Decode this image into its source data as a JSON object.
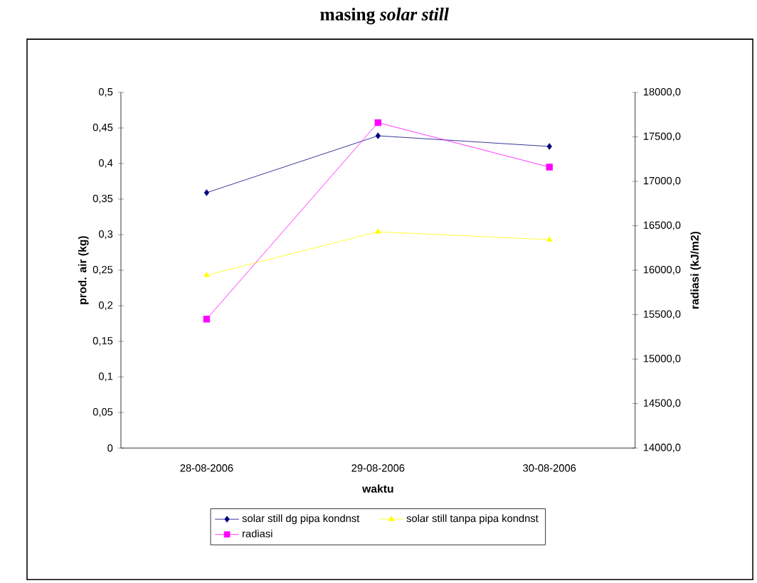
{
  "chart_data": {
    "type": "line",
    "title": "masing *solar still*",
    "xlabel": "waktu",
    "ylabel": "prod. air (kg)",
    "y2label": "radiasi (kJ/m2)",
    "categories": [
      "28-08-2006",
      "29-08-2006",
      "30-08-2006"
    ],
    "series": [
      {
        "name": "solar still dg pipa kondnst",
        "color": "#000080",
        "marker": "diamond",
        "values": [
          0.359,
          0.439,
          0.424
        ]
      },
      {
        "name": "solar still tanpa pipa kondnst",
        "color": "#ffff00",
        "marker": "triangle",
        "values": [
          0.243,
          0.304,
          0.293
        ]
      },
      {
        "name": "radiasi",
        "color": "#ff00ff",
        "marker": "square",
        "axis": "y2",
        "values": [
          15450,
          17660,
          17160
        ]
      }
    ],
    "ylim": [
      0,
      0.5
    ],
    "yticks": [
      0,
      {
        "value": 0.05,
        "label": "0,05"
      },
      {
        "value": 0.1,
        "label": "0,1"
      },
      {
        "value": 0.15,
        "label": "0,15"
      },
      {
        "value": 0.2,
        "label": "0,2"
      },
      {
        "value": 0.25,
        "label": "0,25"
      },
      {
        "value": 0.3,
        "label": "0,3"
      },
      {
        "value": 0.35,
        "label": "0,35"
      },
      {
        "value": 0.4,
        "label": "0,4"
      },
      {
        "value": 0.45,
        "label": "0,45"
      },
      {
        "value": 0.5,
        "label": "0,5"
      }
    ],
    "y2lim": [
      14000,
      18000
    ],
    "y2ticks": [
      {
        "value": 14000,
        "label": "14000,0"
      },
      {
        "value": 14500,
        "label": "14500,0"
      },
      {
        "value": 15000,
        "label": "15000,0"
      },
      {
        "value": 15500,
        "label": "15500,0"
      },
      {
        "value": 16000,
        "label": "16000,0"
      },
      {
        "value": 16500,
        "label": "16500,0"
      },
      {
        "value": 17000,
        "label": "17000,0"
      },
      {
        "value": 17500,
        "label": "17500,0"
      },
      {
        "value": 18000,
        "label": "18000,0"
      }
    ],
    "grid": false,
    "legend": "bottom"
  }
}
